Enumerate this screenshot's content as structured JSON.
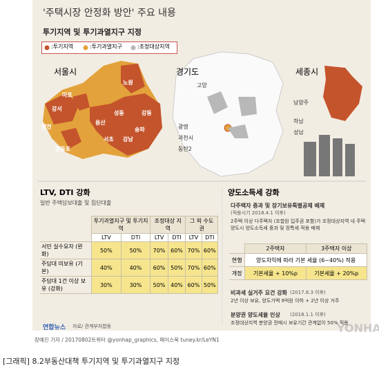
{
  "header": {
    "title": "'주택시장 안정화 방안' 주요 내용"
  },
  "map_section": {
    "title": "투기지역 및 투기과열지구 지정",
    "legend": [
      ":투기지역",
      ":투기과열지구",
      ":조정대상지역"
    ],
    "seoul": {
      "name": "서울시",
      "districts": [
        "노원",
        "마포",
        "강서",
        "용산",
        "성동",
        "강동",
        "양천",
        "송파",
        "영등포",
        "서초",
        "강남"
      ]
    },
    "gyeonggi": {
      "name": "경기도",
      "districts": [
        "고양",
        "남양주",
        "하남",
        "광명",
        "성남",
        "과천시",
        "동탄2"
      ]
    },
    "sejong": {
      "name": "세종시"
    }
  },
  "loan": {
    "title": "LTV, DTI 강화",
    "subtitle": "일반 주택담보대출 및 집단대출",
    "table": {
      "col_groups": [
        "투기과열지구 및 투기지역",
        "조정대상 지역",
        "그 외 수도권"
      ],
      "sub_headers": [
        "LTV",
        "DTI",
        "LTV",
        "DTI",
        "LTV",
        "DTI"
      ],
      "rows": [
        {
          "label": "서민 실수요자 (완화)",
          "values": [
            "50%",
            "50%",
            "70%",
            "60%",
            "70%",
            "60%"
          ]
        },
        {
          "label": "주담대 미보유 (기본)",
          "values": [
            "40%",
            "40%",
            "60%",
            "50%",
            "70%",
            "60%"
          ]
        },
        {
          "label": "주담대 1건 이상 보유 (강화)",
          "values": [
            "30%",
            "30%",
            "50%",
            "40%",
            "60%",
            "50%"
          ]
        }
      ]
    }
  },
  "tax": {
    "title": "양도소득세 강화",
    "items": [
      {
        "title": "다주택자 중과 및 장기보유특별공제 배제",
        "period": "(적용시기 2018.4.1 이후)",
        "text": "2주택 이상 다주택자 (조합원 입주권 포함)가 조정대상지역 내 주택 양도시 양도소득세 중과 및 장특세 적용 배제"
      },
      {
        "title": "비과세 실거주 요건 강화",
        "period": "(2017.8.3 이후)",
        "text": "2년 이상 보유, 양도가액 9억원 이하 + 2년 이상 거주"
      },
      {
        "title": "분양권 양도세율 인상",
        "period": "(2018.1.1 이후)",
        "text": "조정대상지역 분양권 전매시 보유기간 관계없이 50% 적용"
      }
    ],
    "table": {
      "headers": [
        "2주택자",
        "3주택자 이상"
      ],
      "rows": [
        {
          "label": "현행",
          "cells": [
            "양도차익에 따라 기본 세율 (6~40%) 적용"
          ]
        },
        {
          "label": "개정",
          "cells": [
            "기본세율 + 10%p",
            "기본세율 + 20%p"
          ]
        }
      ]
    }
  },
  "footer": {
    "logo": "연합뉴스",
    "source": "자료/ 관계부처합동",
    "watermark": "YONHAP NEWS",
    "credit": "장예진 기자 / 20170802트위터 @yonhap_graphics, 페이스북 tuney.kr/LeYN1",
    "caption": "[그래픽] 8.2부동산대책 투기지역 및 투기과열지구 지정"
  }
}
